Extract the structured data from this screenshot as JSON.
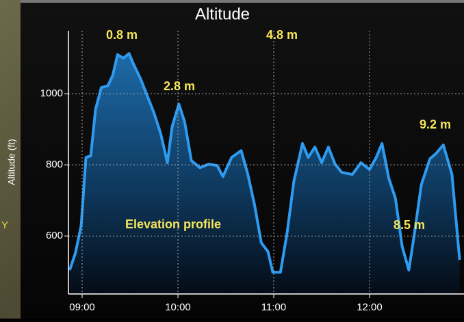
{
  "chart_data": {
    "type": "line",
    "title": "Altitude",
    "ylabel": "Altitude (ft)",
    "x": [
      8.87,
      8.93,
      8.99,
      9.04,
      9.09,
      9.14,
      9.2,
      9.27,
      9.32,
      9.37,
      9.43,
      9.49,
      9.54,
      9.61,
      9.68,
      9.75,
      9.82,
      9.89,
      9.94,
      10.01,
      10.07,
      10.14,
      10.23,
      10.32,
      10.41,
      10.47,
      10.56,
      10.66,
      10.73,
      10.8,
      10.87,
      10.94,
      10.99,
      11.07,
      11.14,
      11.21,
      11.3,
      11.36,
      11.43,
      11.5,
      11.57,
      11.64,
      11.71,
      11.82,
      11.91,
      12.0,
      12.07,
      12.13,
      12.2,
      12.27,
      12.34,
      12.41,
      12.47,
      12.54,
      12.63,
      12.69,
      12.77,
      12.86,
      12.94
    ],
    "values": [
      504,
      552,
      629,
      821,
      825,
      956,
      1017,
      1023,
      1052,
      1110,
      1100,
      1113,
      1081,
      1042,
      994,
      946,
      888,
      806,
      908,
      971,
      921,
      812,
      792,
      802,
      798,
      767,
      821,
      840,
      773,
      687,
      581,
      556,
      498,
      498,
      610,
      754,
      860,
      821,
      850,
      806,
      850,
      802,
      779,
      773,
      806,
      787,
      821,
      860,
      763,
      706,
      571,
      504,
      610,
      744,
      817,
      831,
      856,
      773,
      533
    ],
    "color": "#2e9bf0",
    "xlim": [
      8.857,
      12.986
    ],
    "xticks": [
      {
        "value": 9,
        "label": "09:00"
      },
      {
        "value": 10,
        "label": "10:00"
      },
      {
        "value": 11,
        "label": "11:00"
      },
      {
        "value": 12,
        "label": "12:00"
      }
    ],
    "ylim": [
      437,
      1177
    ],
    "yticks": [
      600,
      800,
      1000
    ],
    "grid": true,
    "annotations": [
      "0.8 m",
      "4.8 m",
      "2.8 m",
      "9.2 m",
      "8.5 m",
      "Elevation profile"
    ]
  },
  "edge_text": "Y"
}
